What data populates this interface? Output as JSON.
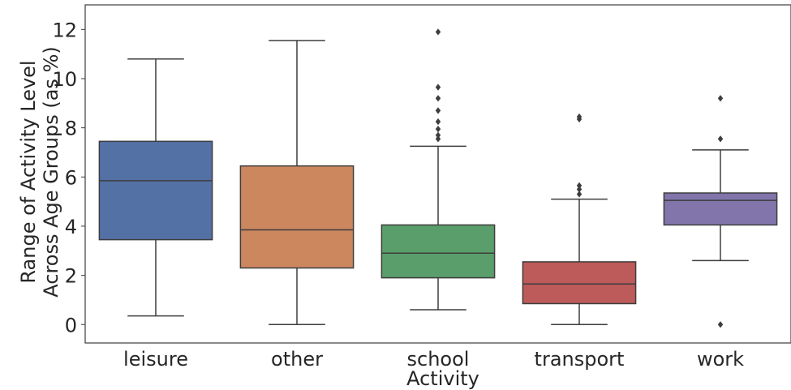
{
  "chart_data": {
    "type": "boxplot",
    "xlabel": "Activity",
    "ylabel_lines": [
      "Range of Activity Level",
      "Across Age Groups (as %)"
    ],
    "ylim": [
      -0.75,
      13.0
    ],
    "yticks": [
      0,
      2,
      4,
      6,
      8,
      10,
      12
    ],
    "grid": false,
    "categories": [
      "leisure",
      "other",
      "school",
      "transport",
      "work"
    ],
    "colors": [
      "#5471a6",
      "#cd875f",
      "#5a9e6b",
      "#bd5a5a",
      "#8175ac"
    ],
    "boxes": [
      {
        "category": "leisure",
        "whisker_low": 0.35,
        "q1": 3.45,
        "median": 5.85,
        "q3": 7.45,
        "whisker_high": 10.8,
        "outliers": []
      },
      {
        "category": "other",
        "whisker_low": 0.0,
        "q1": 2.3,
        "median": 3.85,
        "q3": 6.45,
        "whisker_high": 11.55,
        "outliers": []
      },
      {
        "category": "school",
        "whisker_low": 0.6,
        "q1": 1.9,
        "median": 2.9,
        "q3": 4.05,
        "whisker_high": 7.25,
        "outliers": [
          7.55,
          7.7,
          7.95,
          8.25,
          8.7,
          9.2,
          9.65,
          11.9
        ]
      },
      {
        "category": "transport",
        "whisker_low": 0.0,
        "q1": 0.85,
        "median": 1.65,
        "q3": 2.55,
        "whisker_high": 5.1,
        "outliers": [
          5.3,
          5.5,
          5.65,
          8.35,
          8.45
        ]
      },
      {
        "category": "work",
        "whisker_low": 2.6,
        "q1": 4.05,
        "median": 5.05,
        "q3": 5.35,
        "whisker_high": 7.1,
        "outliers": [
          0.0,
          7.55,
          9.2
        ]
      }
    ]
  }
}
